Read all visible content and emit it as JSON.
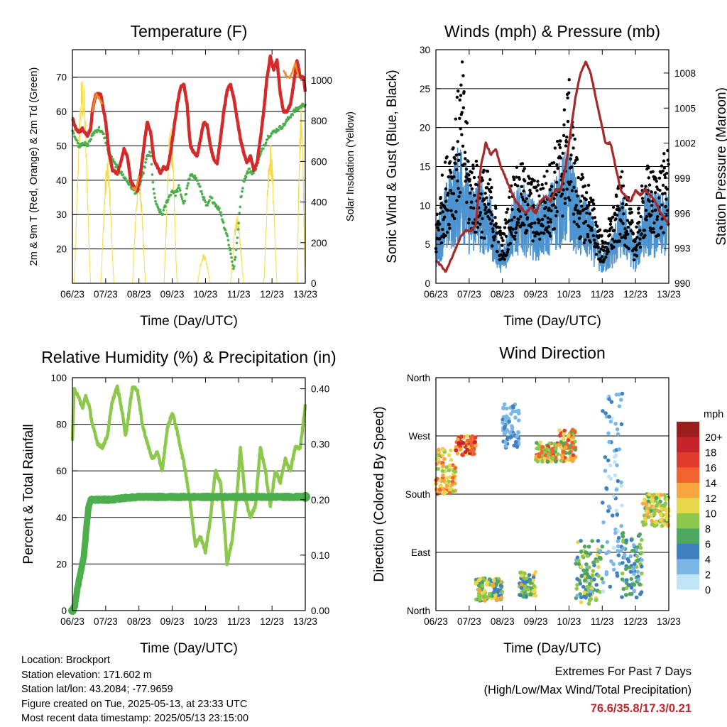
{
  "chart_data": [
    {
      "type": "line",
      "title": "Temperature (F)",
      "xlabel": "Time (Day/UTC)",
      "ylabel": "2m & 9m T (Red, Orange) & 2m Td (Green)",
      "ylabel_right": "Solar Insolation (Yellow)",
      "x_ticks": [
        "06/23",
        "07/23",
        "08/23",
        "09/23",
        "10/23",
        "11/23",
        "12/23",
        "13/23"
      ],
      "ylim": [
        10,
        78
      ],
      "y_ticks": [
        20,
        30,
        40,
        50,
        60,
        70
      ],
      "ylim_right": [
        0,
        1150
      ],
      "y_ticks_right": [
        0,
        200,
        400,
        600,
        800,
        1000
      ],
      "grid": true,
      "series": [
        {
          "axis": "left",
          "color": "#d42a2a",
          "x": [
            0,
            0.1,
            0.2,
            0.3,
            0.45,
            0.55,
            0.6,
            0.7,
            0.85,
            1.0,
            1.1,
            1.2,
            1.35,
            1.45,
            1.55,
            1.65,
            1.75,
            1.85,
            1.95,
            2.05,
            2.15,
            2.25,
            2.35,
            2.45,
            2.55,
            2.65,
            2.75,
            2.85,
            2.95,
            3.05,
            3.15,
            3.25,
            3.35,
            3.45,
            3.5,
            3.55,
            3.65,
            3.75,
            3.85,
            3.95,
            4.05,
            4.15,
            4.25,
            4.35,
            4.45,
            4.55,
            4.65,
            4.75,
            4.85,
            4.95,
            5.05,
            5.15,
            5.25,
            5.35,
            5.45,
            5.55,
            5.65,
            5.75,
            5.85,
            5.95,
            6.05,
            6.15,
            6.25,
            6.35,
            6.45,
            6.55,
            6.65,
            6.75,
            6.85,
            6.95,
            7.0
          ],
          "y": [
            58,
            55,
            54,
            55,
            53,
            55,
            60,
            65,
            65,
            57,
            48,
            43,
            42,
            45,
            49,
            47,
            40,
            38,
            37,
            42,
            50,
            57,
            54,
            46,
            44,
            42,
            44,
            43,
            48,
            55,
            62,
            67,
            68,
            62,
            55,
            50,
            48,
            47,
            52,
            57,
            56,
            50,
            46,
            45,
            52,
            60,
            66,
            68,
            64,
            58,
            52,
            48,
            45,
            47,
            43,
            45,
            52,
            60,
            70,
            76,
            72,
            75,
            65,
            60,
            60,
            62,
            68,
            75,
            70,
            70,
            66
          ]
        },
        {
          "axis": "left",
          "color": "#f28c28",
          "x": [
            0.6,
            0.7,
            0.8,
            0.9,
            1.8,
            1.9,
            2.0,
            6.35,
            6.45,
            6.55,
            6.7,
            6.8
          ],
          "y": [
            60,
            65,
            64,
            62,
            38,
            37,
            41,
            72,
            70,
            70,
            74,
            70
          ]
        },
        {
          "axis": "left",
          "color": "#4cae4c",
          "x": [
            0,
            0.1,
            0.2,
            0.3,
            0.45,
            0.55,
            0.65,
            0.8,
            0.95,
            1.1,
            1.25,
            1.4,
            1.55,
            1.7,
            1.85,
            1.95,
            2.1,
            2.25,
            2.35,
            2.45,
            2.55,
            2.7,
            2.85,
            3.0,
            3.1,
            3.2,
            3.35,
            3.5,
            3.6,
            3.75,
            3.9,
            4.05,
            4.15,
            4.3,
            4.45,
            4.55,
            4.65,
            4.75,
            4.85,
            4.95,
            5.05,
            5.15,
            5.3,
            5.45,
            5.6,
            5.75,
            5.9,
            6.05,
            6.2,
            6.35,
            6.5,
            6.65,
            6.8,
            6.95,
            7.0
          ],
          "y": [
            55,
            52,
            50,
            51,
            50,
            52,
            54,
            55,
            53,
            48,
            45,
            43,
            41,
            39,
            37,
            36,
            41,
            47,
            48,
            36,
            32,
            30,
            34,
            37,
            36,
            38,
            33,
            40,
            42,
            40,
            36,
            32,
            35,
            33,
            31,
            27,
            24,
            19,
            14,
            22,
            34,
            40,
            43,
            42,
            46,
            50,
            53,
            54,
            55,
            56,
            58,
            60,
            61,
            62,
            62
          ]
        }
      ],
      "insolation": {
        "axis": "right",
        "color": "#f7da48",
        "peaks": [
          [
            0.05,
            0.55,
            1040
          ],
          [
            0.85,
            1.25,
            620
          ],
          [
            1.8,
            2.2,
            560
          ],
          [
            2.75,
            3.15,
            780
          ],
          [
            3.75,
            4.15,
            150
          ],
          [
            4.75,
            5.15,
            340
          ],
          [
            5.75,
            6.15,
            700
          ],
          [
            6.75,
            7.0,
            900
          ]
        ]
      }
    },
    {
      "type": "scatter",
      "title": "Winds (mph) & Pressure (mb)",
      "xlabel": "Time (Day/UTC)",
      "ylabel": "Sonic Wind & Gust (Blue, Black)",
      "ylabel_right": "Station Pressure (Maroon)",
      "x_ticks": [
        "06/23",
        "07/23",
        "08/23",
        "09/23",
        "10/23",
        "11/23",
        "12/23",
        "13/23"
      ],
      "ylim": [
        0,
        30
      ],
      "y_ticks": [
        0,
        5,
        10,
        15,
        20,
        25,
        30
      ],
      "ylim_right": [
        990,
        1010
      ],
      "y_ticks_right": [
        990,
        993,
        996,
        999,
        1002,
        1005,
        1008
      ],
      "grid": true,
      "wind_envelope": {
        "x": [
          0,
          0.2,
          0.5,
          0.8,
          1.0,
          1.3,
          1.6,
          2.0,
          2.3,
          2.6,
          3.0,
          3.3,
          3.7,
          4.0,
          4.3,
          4.6,
          5.0,
          5.3,
          5.6,
          6.0,
          6.3,
          6.6,
          7.0
        ],
        "y": [
          5,
          9,
          12,
          15,
          10,
          11,
          9,
          3,
          9,
          10,
          8,
          9,
          12,
          14,
          9,
          8,
          3,
          5,
          9,
          4,
          10,
          9,
          9
        ]
      },
      "gust_envelope": {
        "x": [
          0,
          0.2,
          0.5,
          0.8,
          1.0,
          1.3,
          1.6,
          2.0,
          2.3,
          2.6,
          3.0,
          3.3,
          3.7,
          4.0,
          4.3,
          4.6,
          5.0,
          5.3,
          5.6,
          6.0,
          6.3,
          6.6,
          7.0
        ],
        "y": [
          7,
          12,
          17,
          24,
          14,
          13,
          12,
          5,
          12,
          13,
          11,
          12,
          16,
          22,
          12,
          11,
          5,
          8,
          12,
          6,
          13,
          12,
          15
        ]
      },
      "pressure": {
        "axis": "right",
        "color": "#a52a2a",
        "x": [
          0,
          0.15,
          0.3,
          0.45,
          0.6,
          0.75,
          0.9,
          1.05,
          1.2,
          1.35,
          1.5,
          1.65,
          1.8,
          1.95,
          2.1,
          2.25,
          2.4,
          2.55,
          2.7,
          2.85,
          3.0,
          3.15,
          3.3,
          3.45,
          3.6,
          3.75,
          3.9,
          4.05,
          4.2,
          4.35,
          4.5,
          4.65,
          4.8,
          4.95,
          5.1,
          5.25,
          5.4,
          5.55,
          5.7,
          5.85,
          6.0,
          6.15,
          6.3,
          6.45,
          6.6,
          6.75,
          6.9,
          7.0
        ],
        "y": [
          992,
          991.5,
          991,
          992,
          993,
          994,
          994.5,
          994.5,
          995,
          1000,
          1002,
          1001,
          1001.5,
          1000,
          999,
          998,
          997,
          996.5,
          996,
          996.5,
          996,
          997,
          997.5,
          997,
          998,
          998,
          1000,
          1003,
          1006,
          1008,
          1009,
          1008,
          1006,
          1004,
          1002,
          1002,
          1000,
          998,
          997.5,
          997,
          998,
          997.5,
          998,
          997.5,
          997,
          996,
          995.5,
          995
        ]
      }
    },
    {
      "type": "line",
      "title": "Relative Humidity (%) & Precipitation (in)",
      "xlabel": "Time (Day/UTC)",
      "ylabel": "Percent & Total Rainfall",
      "x_ticks": [
        "06/23",
        "07/23",
        "08/23",
        "09/23",
        "10/23",
        "11/23",
        "12/23",
        "13/23"
      ],
      "ylim": [
        0,
        100
      ],
      "y_ticks": [
        0,
        20,
        40,
        60,
        80,
        100
      ],
      "ylim_right": [
        0,
        0.42
      ],
      "y_ticks_right": [
        "0.00",
        "0.10",
        "0.20",
        "0.30",
        "0.40"
      ],
      "grid": true,
      "series": [
        {
          "name": "RH",
          "axis": "left",
          "color": "#8cc84b",
          "x": [
            0,
            0.05,
            0.15,
            0.3,
            0.4,
            0.5,
            0.6,
            0.75,
            0.9,
            1.05,
            1.2,
            1.35,
            1.5,
            1.6,
            1.7,
            1.8,
            1.95,
            2.1,
            2.25,
            2.4,
            2.55,
            2.7,
            2.85,
            3.0,
            3.1,
            3.25,
            3.4,
            3.55,
            3.7,
            3.85,
            4.0,
            4.15,
            4.3,
            4.45,
            4.55,
            4.65,
            4.8,
            4.95,
            5.05,
            5.2,
            5.35,
            5.5,
            5.65,
            5.8,
            5.95,
            6.1,
            6.25,
            6.4,
            6.55,
            6.7,
            6.85,
            7.0
          ],
          "y": [
            73,
            95,
            93,
            87,
            92,
            88,
            80,
            72,
            70,
            75,
            90,
            96,
            85,
            75,
            85,
            96,
            95,
            80,
            72,
            65,
            68,
            60,
            78,
            85,
            80,
            70,
            60,
            45,
            28,
            32,
            25,
            40,
            60,
            55,
            40,
            20,
            30,
            50,
            70,
            48,
            40,
            45,
            70,
            60,
            45,
            60,
            55,
            65,
            60,
            70,
            70,
            88
          ]
        },
        {
          "name": "Precipitation",
          "axis": "right",
          "color": "#4cae4c",
          "x": [
            0,
            0.08,
            0.15,
            0.25,
            0.35,
            0.42,
            0.48,
            0.55,
            0.65,
            0.8,
            1.2,
            1.55,
            2.0,
            3.0,
            4.0,
            5.0,
            6.0,
            7.0
          ],
          "y": [
            0,
            0.01,
            0.04,
            0.07,
            0.1,
            0.15,
            0.185,
            0.2,
            0.2,
            0.2,
            0.2,
            0.203,
            0.205,
            0.205,
            0.205,
            0.205,
            0.205,
            0.205
          ]
        }
      ]
    },
    {
      "type": "scatter",
      "title": "Wind Direction",
      "xlabel": "Time (Day/UTC)",
      "ylabel": "Direction (Colored By Speed)",
      "x_ticks": [
        "06/23",
        "07/23",
        "08/23",
        "09/23",
        "10/23",
        "11/23",
        "12/23",
        "13/23"
      ],
      "y_ticks": [
        "North",
        "East",
        "South",
        "West",
        "North"
      ],
      "ylim": [
        0,
        360
      ],
      "grid": true,
      "legend": {
        "title": "mph",
        "labels": [
          "20+",
          "18",
          "16",
          "14",
          "12",
          "10",
          "8",
          "6",
          "4",
          "2",
          "0"
        ],
        "colors": [
          "#9c1d1d",
          "#c4242a",
          "#e23b2e",
          "#f1632e",
          "#f9a641",
          "#e8d94c",
          "#8cc84b",
          "#4fa660",
          "#3f81be",
          "#7cb6e6",
          "#bfe3f7"
        ]
      },
      "clusters": [
        {
          "x": [
            0.0,
            0.6
          ],
          "dir": [
            180,
            250
          ],
          "speed": [
            8,
            14
          ]
        },
        {
          "x": [
            0.6,
            1.2
          ],
          "dir": [
            240,
            270
          ],
          "speed": [
            10,
            18
          ]
        },
        {
          "x": [
            1.2,
            2.0
          ],
          "dir": [
            15,
            50
          ],
          "speed": [
            4,
            12
          ]
        },
        {
          "x": [
            2.0,
            2.5
          ],
          "dir": [
            250,
            320
          ],
          "speed": [
            1,
            4
          ]
        },
        {
          "x": [
            2.5,
            3.0
          ],
          "dir": [
            20,
            60
          ],
          "speed": [
            4,
            12
          ]
        },
        {
          "x": [
            3.0,
            3.7
          ],
          "dir": [
            230,
            260
          ],
          "speed": [
            6,
            16
          ]
        },
        {
          "x": [
            3.7,
            4.2
          ],
          "dir": [
            230,
            280
          ],
          "speed": [
            6,
            16
          ]
        },
        {
          "x": [
            4.2,
            5.0
          ],
          "dir": [
            10,
            110
          ],
          "speed": [
            2,
            10
          ]
        },
        {
          "x": [
            5.0,
            5.6
          ],
          "dir": [
            20,
            340
          ],
          "speed": [
            0,
            4
          ]
        },
        {
          "x": [
            5.6,
            6.2
          ],
          "dir": [
            20,
            120
          ],
          "speed": [
            2,
            8
          ]
        },
        {
          "x": [
            6.2,
            7.0
          ],
          "dir": [
            130,
            180
          ],
          "speed": [
            6,
            12
          ]
        }
      ]
    }
  ],
  "footer": {
    "location": "Location: Brockport",
    "elevation": "Station elevation: 171.602 m",
    "latlon": "Station lat/lon: 43.2084; -77.9659",
    "created": "Figure created on Tue, 2025-05-13, at 23:33 UTC",
    "recent": "Most recent data timestamp: 2025/05/13 23:15:00",
    "extremes_title": "Extremes For Past 7 Days",
    "extremes_sub": "(High/Low/Max Wind/Total Precipitation)",
    "extremes_values": "76.6/35.8/17.3/0.21"
  }
}
